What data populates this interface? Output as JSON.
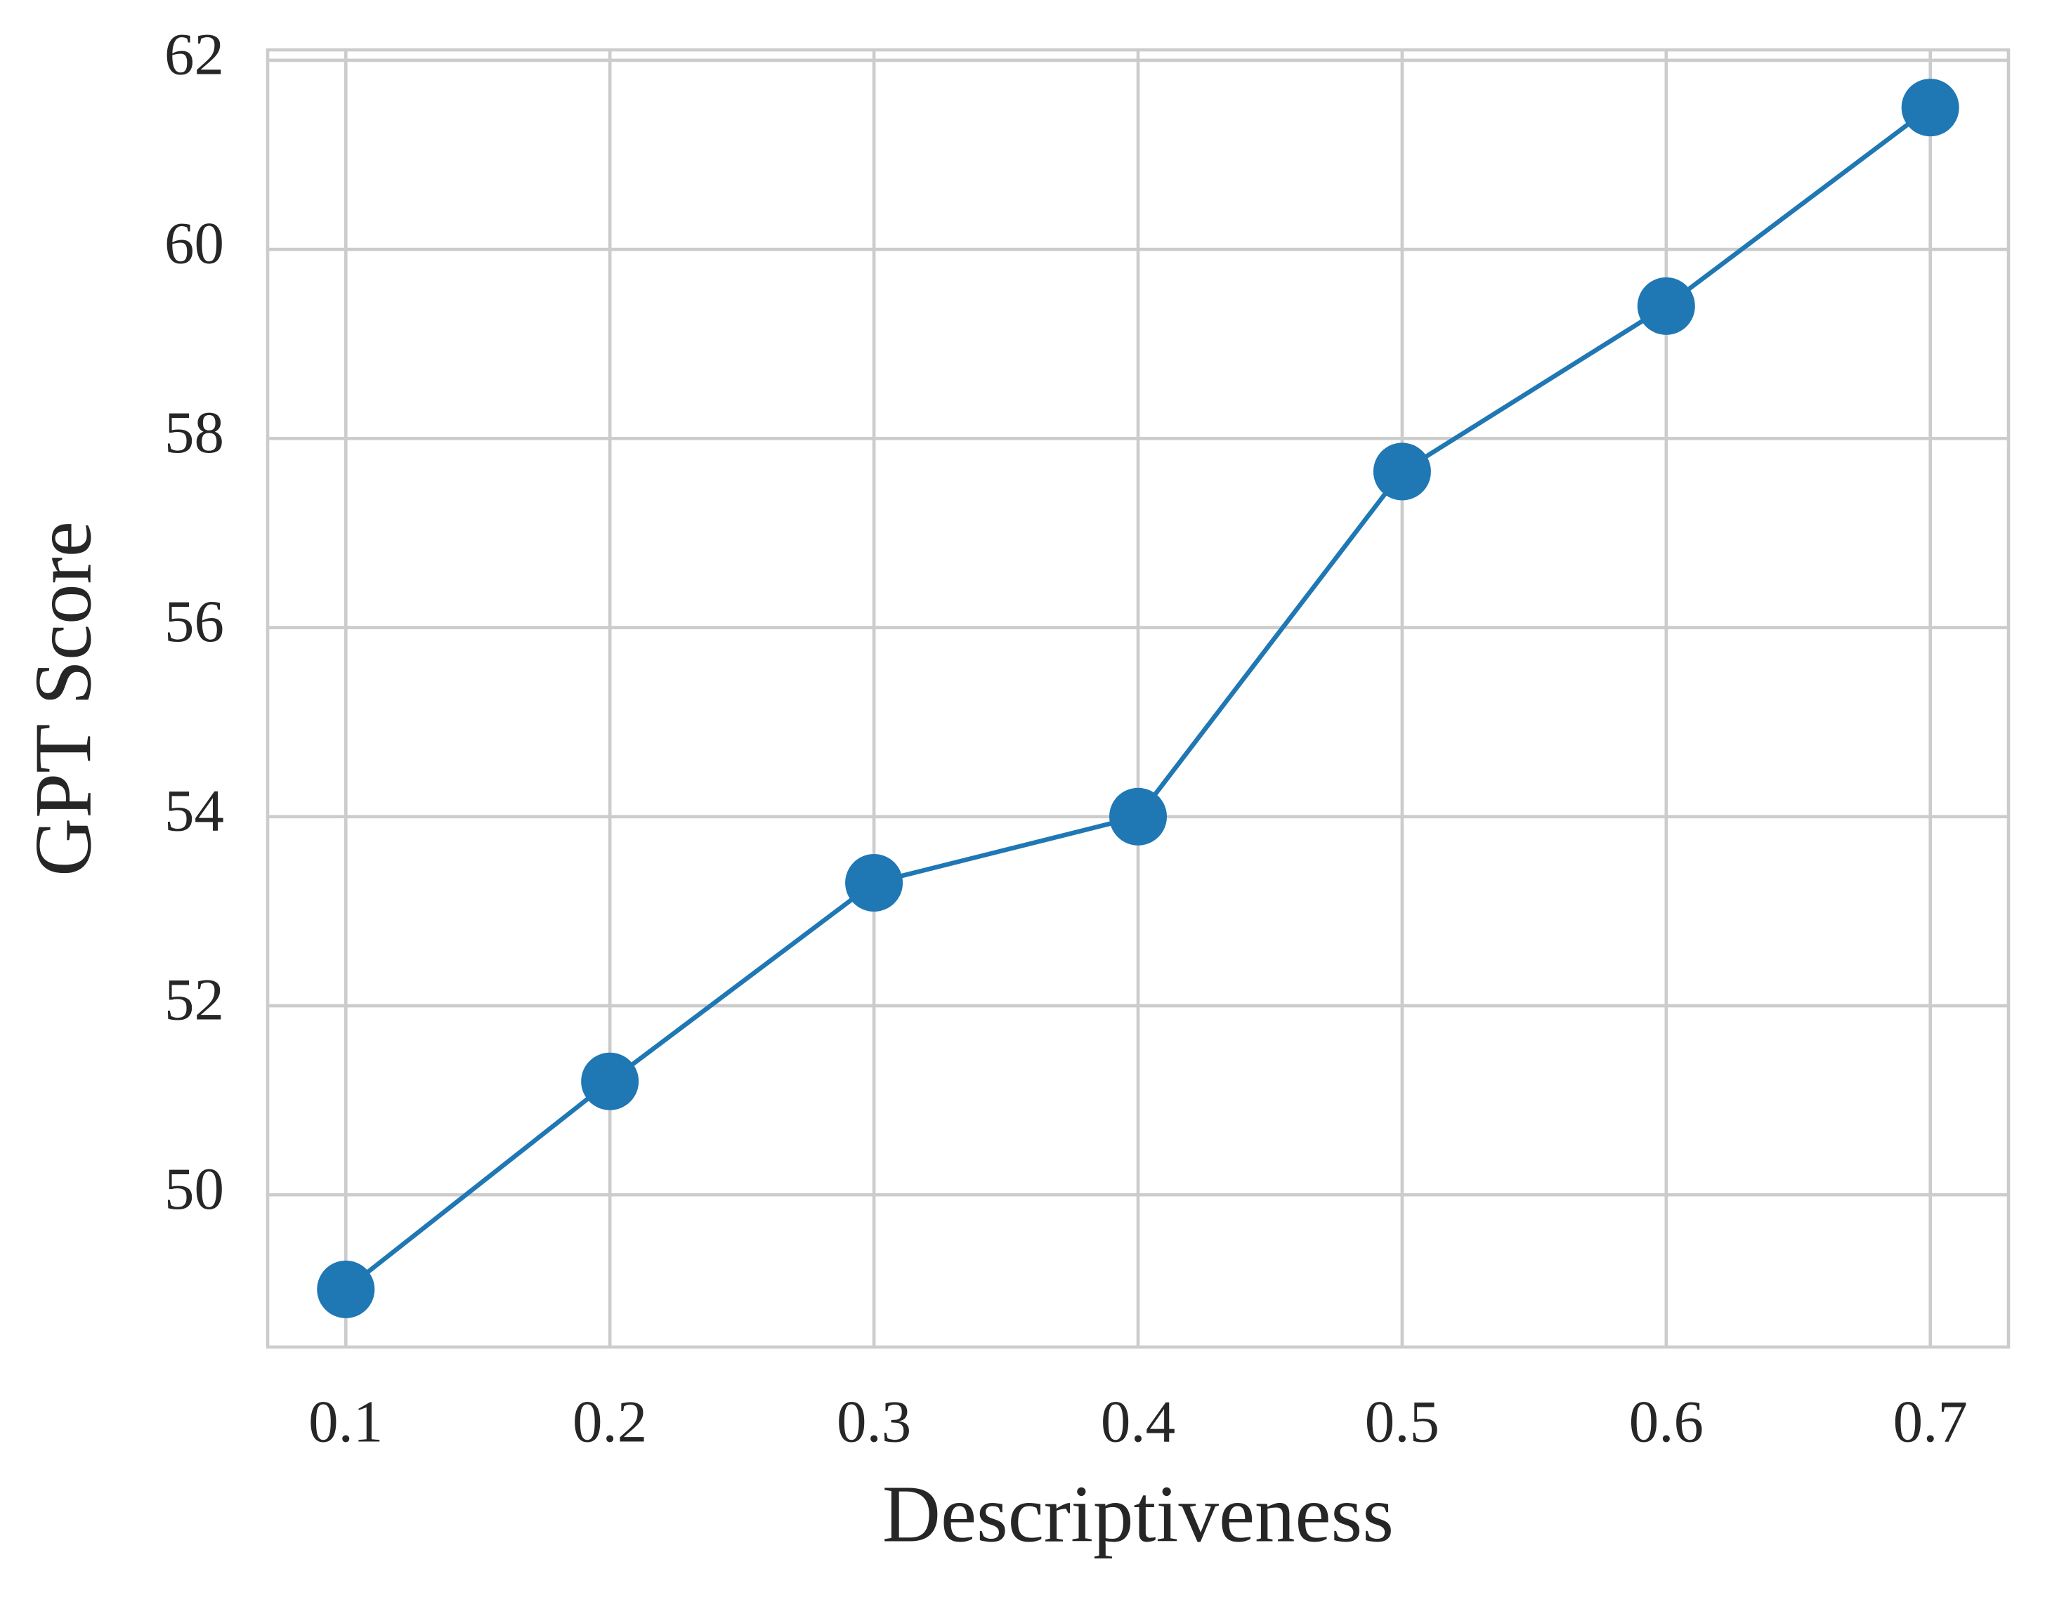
{
  "chart_data": {
    "type": "line",
    "x_label": "Descriptiveness",
    "y_label": "GPT Score",
    "x": [
      0.1,
      0.2,
      0.3,
      0.4,
      0.5,
      0.6,
      0.7
    ],
    "series": [
      {
        "color": "#1f77b4",
        "values": [
          49.0,
          51.2,
          53.3,
          54.0,
          57.65,
          59.4,
          61.5
        ]
      }
    ],
    "xlim": [
      0.0704,
      0.7296
    ],
    "xticks": [
      0.1,
      0.2,
      0.3,
      0.4,
      0.5,
      0.6,
      0.7
    ],
    "ylim": [
      48.39,
      62.11
    ],
    "yticks": [
      50,
      52,
      54,
      56,
      58,
      60,
      62
    ],
    "grid": true
  }
}
